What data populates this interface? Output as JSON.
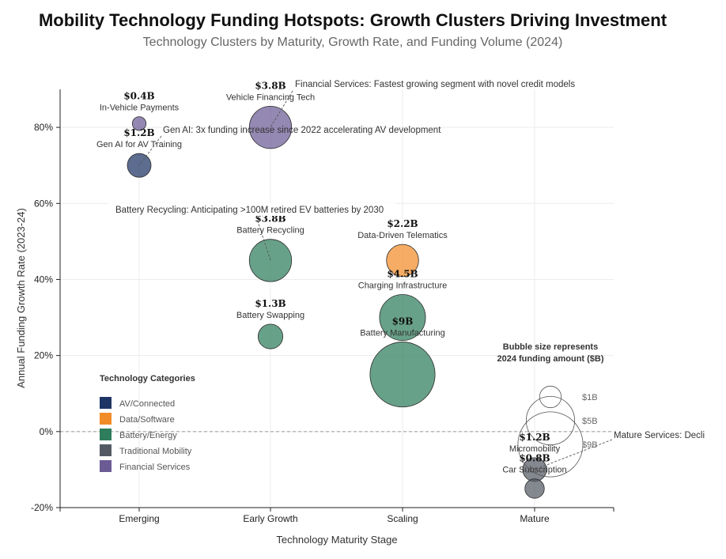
{
  "chart_data": {
    "type": "scatter",
    "title": "Mobility Technology Funding Hotspots: Growth Clusters Driving Investment",
    "subtitle": "Technology Clusters by Maturity, Growth Rate, and Funding Volume (2024)",
    "xlabel": "Technology Maturity Stage",
    "ylabel": "Annual Funding Growth Rate (2023-24)",
    "x_categories": [
      "Emerging",
      "Early Growth",
      "Scaling",
      "Mature"
    ],
    "ylim": [
      -20,
      90
    ],
    "yticks": [
      -20,
      0,
      20,
      40,
      60,
      80
    ],
    "ytick_labels": [
      "-20%",
      "0%",
      "20%",
      "40%",
      "60%",
      "80%"
    ],
    "grid": true,
    "reference_line_y": 0,
    "series": [
      {
        "category": "AV/Connected",
        "color": "#1f3565",
        "points": [
          {
            "label": "Gen AI for AV Training",
            "x": "Emerging",
            "y": 70,
            "funding": 1.2,
            "value_label": "$1.2B"
          }
        ]
      },
      {
        "category": "Data/Software",
        "color": "#f28c28",
        "points": [
          {
            "label": "Data-Driven Telematics",
            "x": "Scaling",
            "y": 45,
            "funding": 2.2,
            "value_label": "$2.2B"
          }
        ]
      },
      {
        "category": "Battery/Energy",
        "color": "#2e7d5b",
        "points": [
          {
            "label": "Battery Recycling",
            "x": "Early Growth",
            "y": 45,
            "funding": 3.8,
            "value_label": "$3.8B"
          },
          {
            "label": "Battery Swapping",
            "x": "Early Growth",
            "y": 25,
            "funding": 1.3,
            "value_label": "$1.3B"
          },
          {
            "label": "Charging Infrastructure",
            "x": "Scaling",
            "y": 30,
            "funding": 4.5,
            "value_label": "$4.5B"
          },
          {
            "label": "Battery Manufacturing",
            "x": "Scaling",
            "y": 15,
            "funding": 9,
            "value_label": "$9B"
          }
        ]
      },
      {
        "category": "Traditional Mobility",
        "color": "#545a64",
        "points": [
          {
            "label": "Micromobility",
            "x": "Mature",
            "y": -10,
            "funding": 1.2,
            "value_label": "$1.2B"
          },
          {
            "label": "Car Subscription",
            "x": "Mature",
            "y": -15,
            "funding": 0.8,
            "value_label": "$0.8B"
          }
        ]
      },
      {
        "category": "Financial Services",
        "color": "#6b5b95",
        "points": [
          {
            "label": "In-Vehicle Payments",
            "x": "Emerging",
            "y": 81,
            "funding": 0.4,
            "value_label": "$0.4B"
          },
          {
            "label": "Vehicle Financing Tech",
            "x": "Early Growth",
            "y": 80,
            "funding": 3.8,
            "value_label": "$3.8B"
          }
        ]
      }
    ],
    "annotations": [
      {
        "text": "Financial Services: Fastest growing segment with novel credit models",
        "target": "Vehicle Financing Tech"
      },
      {
        "text": "Gen AI: 3x funding increase since 2022 accelerating AV development",
        "target": "Gen AI for AV Training"
      },
      {
        "text": "Battery Recycling: Anticipating >100M retired EV batteries by 2030",
        "target": "Battery Recycling"
      },
      {
        "text": "Mature Services: Decli",
        "target": "Micromobility"
      }
    ],
    "legend": {
      "title": "Technology Categories",
      "placement": "lower-left",
      "items": [
        "AV/Connected",
        "Data/Software",
        "Battery/Energy",
        "Traditional Mobility",
        "Financial Services"
      ]
    },
    "size_legend": {
      "title_line1": "Bubble size represents",
      "title_line2": "2024 funding amount ($B)",
      "placement": "lower-right",
      "entries": [
        {
          "value": 1,
          "label": "$1B"
        },
        {
          "value": 5,
          "label": "$5B"
        },
        {
          "value": 9,
          "label": "$9B"
        }
      ]
    }
  }
}
